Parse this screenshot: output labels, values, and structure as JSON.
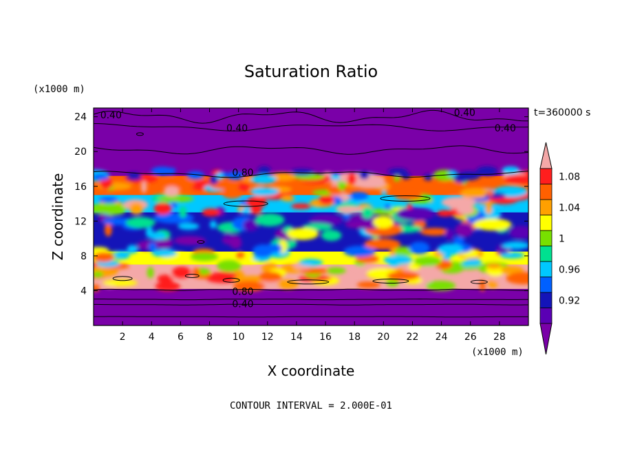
{
  "chart_data": {
    "type": "heatmap",
    "title": "Saturation Ratio",
    "xlabel": "X coordinate",
    "ylabel": "Z coordinate",
    "x_unit": "(x1000 m)",
    "y_unit": "(x1000 m)",
    "time_label": "t=360000 s",
    "footer": "CONTOUR INTERVAL = 2.000E-01",
    "xlim": [
      0,
      30
    ],
    "ylim": [
      0,
      25
    ],
    "x_ticks": [
      "2",
      "4",
      "6",
      "8",
      "10",
      "12",
      "14",
      "16",
      "18",
      "20",
      "22",
      "24",
      "26",
      "28"
    ],
    "y_ticks": [
      "4",
      "8",
      "12",
      "16",
      "20",
      "24"
    ],
    "colorbar": {
      "labels": [
        "0.92",
        "0.96",
        "1",
        "1.04",
        "1.08"
      ],
      "label_levels": [
        0.92,
        0.96,
        1.0,
        1.04,
        1.08
      ],
      "bins": [
        {
          "from": null,
          "to": 0.9,
          "color": "#7a00a8"
        },
        {
          "from": 0.9,
          "to": 0.92,
          "color": "#5a00b4"
        },
        {
          "from": 0.92,
          "to": 0.94,
          "color": "#1414b8"
        },
        {
          "from": 0.94,
          "to": 0.96,
          "color": "#0060ff"
        },
        {
          "from": 0.96,
          "to": 0.98,
          "color": "#00c8ff"
        },
        {
          "from": 0.98,
          "to": 1.0,
          "color": "#00e090"
        },
        {
          "from": 1.0,
          "to": 1.02,
          "color": "#78e000"
        },
        {
          "from": 1.02,
          "to": 1.04,
          "color": "#ffff00"
        },
        {
          "from": 1.04,
          "to": 1.06,
          "color": "#ffa000"
        },
        {
          "from": 1.06,
          "to": 1.08,
          "color": "#ff6000"
        },
        {
          "from": 1.08,
          "to": 1.1,
          "color": "#ff1e1e"
        },
        {
          "from": 1.1,
          "to": null,
          "color": "#f4a8a8"
        }
      ]
    },
    "contour_labels": [
      {
        "text": "0.40",
        "x": 1.2,
        "z": 24.2
      },
      {
        "text": "0.40",
        "x": 9.9,
        "z": 22.7
      },
      {
        "text": "0.40",
        "x": 25.6,
        "z": 24.5
      },
      {
        "text": "0.40",
        "x": 28.4,
        "z": 22.7
      },
      {
        "text": "0.80",
        "x": 10.3,
        "z": 17.6
      },
      {
        "text": "0.80",
        "x": 10.3,
        "z": 3.9
      },
      {
        "text": "0.40",
        "x": 10.3,
        "z": 2.5
      }
    ],
    "bands": [
      {
        "z0": 0.0,
        "z1": 4.2,
        "level": 0.85
      },
      {
        "z0": 4.2,
        "z1": 7.0,
        "level": 1.1
      },
      {
        "z0": 7.0,
        "z1": 8.5,
        "level": 1.02
      },
      {
        "z0": 8.5,
        "z1": 13.0,
        "level": 0.93
      },
      {
        "z0": 13.0,
        "z1": 15.0,
        "level": 0.97
      },
      {
        "z0": 15.0,
        "z1": 17.2,
        "level": 1.06
      },
      {
        "z0": 17.2,
        "z1": 25.0,
        "level": 0.85
      }
    ]
  }
}
